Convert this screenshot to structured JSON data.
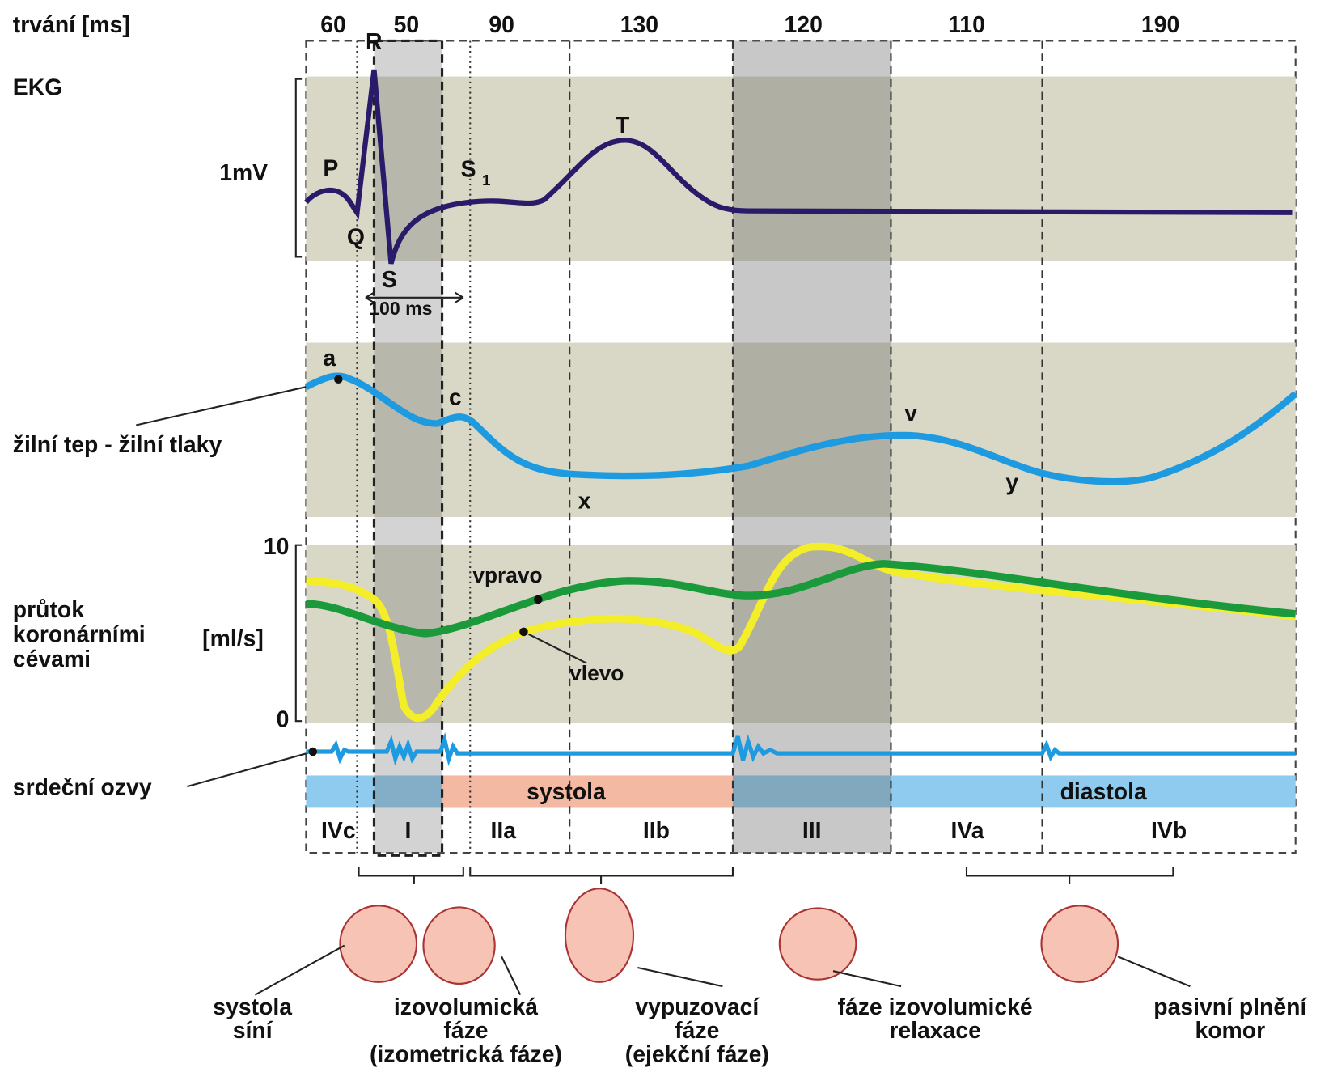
{
  "header": {
    "duration_label": "trvání [ms]",
    "durations": [
      60,
      50,
      90,
      130,
      120,
      110,
      190
    ]
  },
  "ekg": {
    "label": "EKG",
    "scale": "1mV",
    "waves": [
      "P",
      "Q",
      "R",
      "S",
      "T"
    ],
    "s1": {
      "base": "S",
      "sub": "1"
    },
    "interval": "100 ms"
  },
  "venous": {
    "label": "žilní tep - žilní tlaky",
    "points": [
      "a",
      "c",
      "x",
      "v",
      "y"
    ]
  },
  "coronary": {
    "label": [
      "průtok",
      "koronárními",
      "cévami"
    ],
    "unit": "[ml/s]",
    "scale_top": "10",
    "scale_bottom": "0",
    "right": "vpravo",
    "left": "vlevo"
  },
  "sounds": {
    "label": "srdeční ozvy"
  },
  "periods": {
    "systole": "systola",
    "diastole": "diastola"
  },
  "phases": [
    "IVc",
    "I",
    "IIa",
    "IIb",
    "III",
    "IVa",
    "IVb"
  ],
  "captions": [
    [
      "systola",
      "síní"
    ],
    [
      "izovolumická",
      "fáze",
      "(izometrická fáze)"
    ],
    [
      "vypuzovací",
      "fáze",
      "(ejekční fáze)"
    ],
    [
      "fáze izovolumické",
      "relaxace"
    ],
    [
      "pasivní plnění",
      "komor"
    ]
  ]
}
